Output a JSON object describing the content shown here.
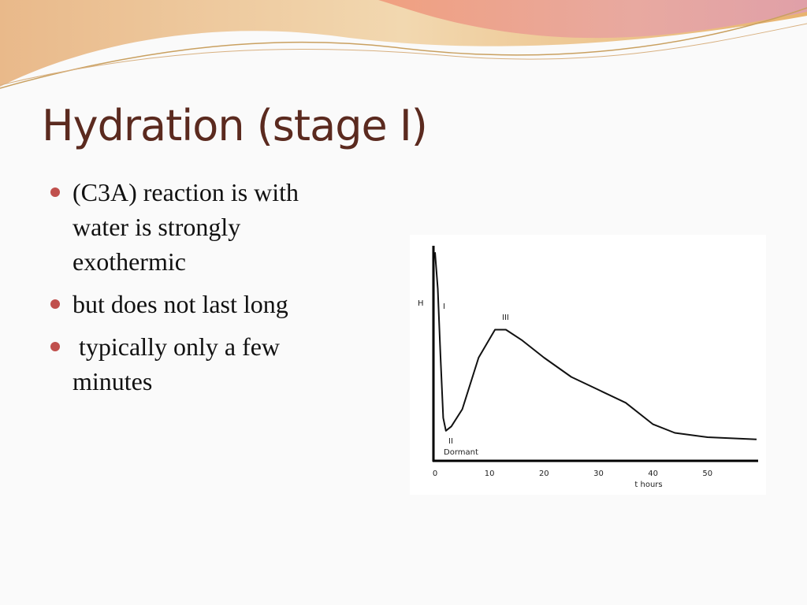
{
  "slide": {
    "title": "Hydration (stage I)",
    "bullets": [
      "(C3A) reaction is with water is strongly exothermic",
      "but does not last long",
      " typically only a few minutes"
    ]
  },
  "chart_data": {
    "type": "line",
    "ylabel": "H",
    "xlabel": "t hours",
    "annotations": [
      "I",
      "II",
      "Dormant",
      "III"
    ],
    "x": [
      0,
      0.5,
      1,
      1.5,
      2,
      3,
      5,
      8,
      11,
      13,
      16,
      20,
      25,
      30,
      35,
      40,
      44,
      50,
      59
    ],
    "values": [
      97,
      80,
      49,
      20,
      14,
      16,
      24,
      48,
      61,
      61,
      56,
      48,
      39,
      33,
      27,
      17,
      13,
      11,
      10
    ],
    "color": "#111111",
    "xlim": [
      0,
      59
    ],
    "ylim": [
      0,
      100
    ],
    "xticks": [
      0,
      10,
      20,
      30,
      40,
      50
    ]
  }
}
